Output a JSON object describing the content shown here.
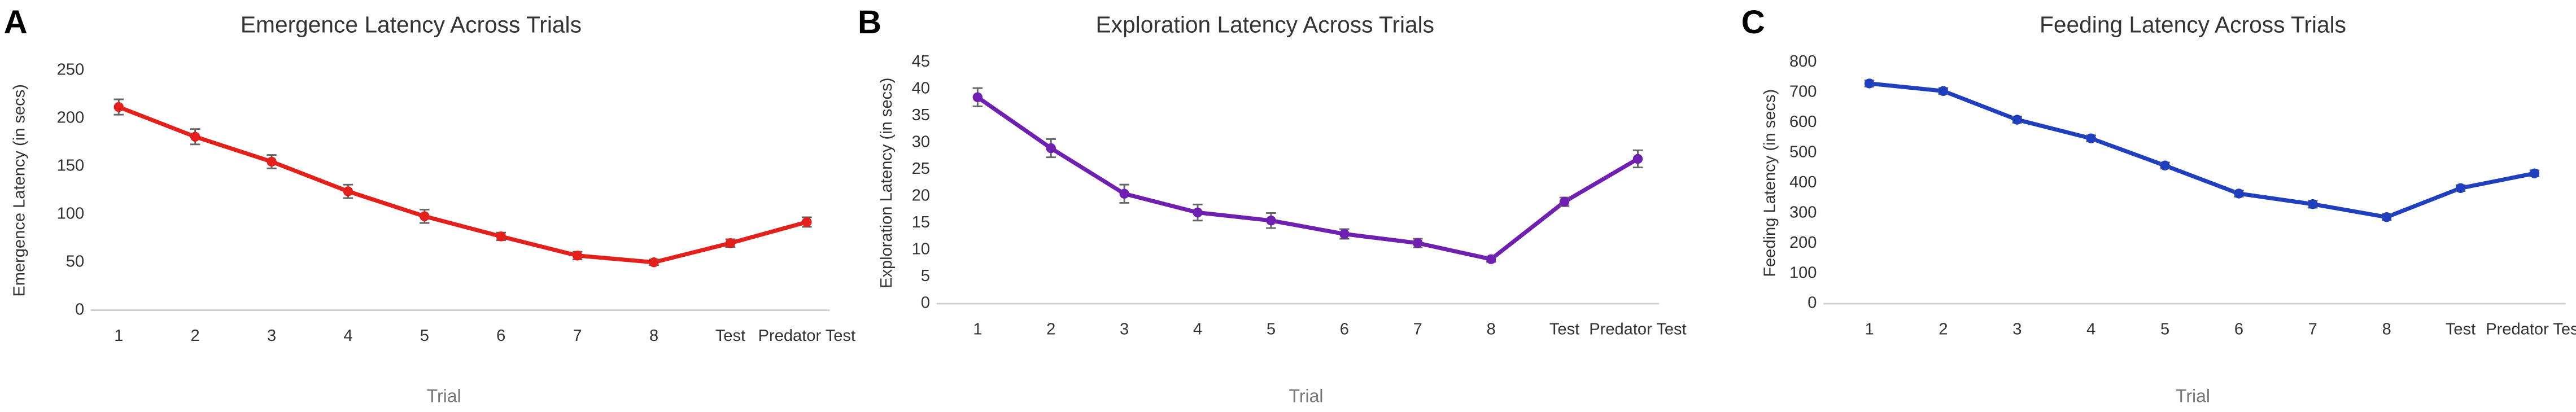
{
  "chart_data": [
    {
      "type": "line",
      "panel_label": "A",
      "title": "Emergence Latency Across Trials",
      "x_label": "Trial",
      "y_label": "Emergence  Latency (in secs)",
      "categories": [
        "1",
        "2",
        "3",
        "4",
        "5",
        "6",
        "7",
        "8",
        "Test",
        "Predator Test"
      ],
      "series": [
        {
          "color": "#e3201b",
          "values": [
            212,
            181,
            155,
            124,
            98,
            77,
            57,
            50,
            70,
            92
          ],
          "errors": [
            8,
            8,
            7,
            7,
            7,
            4,
            4,
            3,
            4,
            5
          ]
        }
      ],
      "ylim": [
        0,
        250
      ],
      "yticks": [
        0,
        50,
        100,
        150,
        200,
        250
      ]
    },
    {
      "type": "line",
      "panel_label": "B",
      "title": "Exploration Latency Across Trials",
      "x_label": "Trial",
      "y_label": "Exploration Latency (in secs)",
      "categories": [
        "1",
        "2",
        "3",
        "4",
        "5",
        "6",
        "7",
        "8",
        "Test",
        "Predator Test"
      ],
      "series": [
        {
          "color": "#7020b0",
          "values": [
            38.5,
            29,
            20.5,
            17,
            15.5,
            13,
            11.3,
            8.3,
            19,
            27
          ],
          "errors": [
            1.7,
            1.7,
            1.7,
            1.5,
            1.4,
            0.9,
            0.8,
            0.5,
            0.8,
            1.6
          ]
        }
      ],
      "ylim": [
        0,
        45
      ],
      "yticks": [
        0,
        5,
        10,
        15,
        20,
        25,
        30,
        35,
        40,
        45
      ]
    },
    {
      "type": "line",
      "panel_label": "C",
      "title": "Feeding Latency Across Trials",
      "x_label": "Trial",
      "y_label": "Feeding Latency (in secs)",
      "categories": [
        "1",
        "2",
        "3",
        "4",
        "5",
        "6",
        "7",
        "8",
        "Test",
        "Predator Test"
      ],
      "series": [
        {
          "color": "#1f3fbf",
          "values": [
            730,
            705,
            610,
            548,
            458,
            365,
            330,
            287,
            383,
            432
          ],
          "errors": [
            10,
            10,
            10,
            10,
            10,
            10,
            12,
            10,
            10,
            10
          ]
        }
      ],
      "ylim": [
        0,
        800
      ],
      "yticks": [
        0,
        100,
        200,
        300,
        400,
        500,
        600,
        700,
        800
      ]
    }
  ]
}
